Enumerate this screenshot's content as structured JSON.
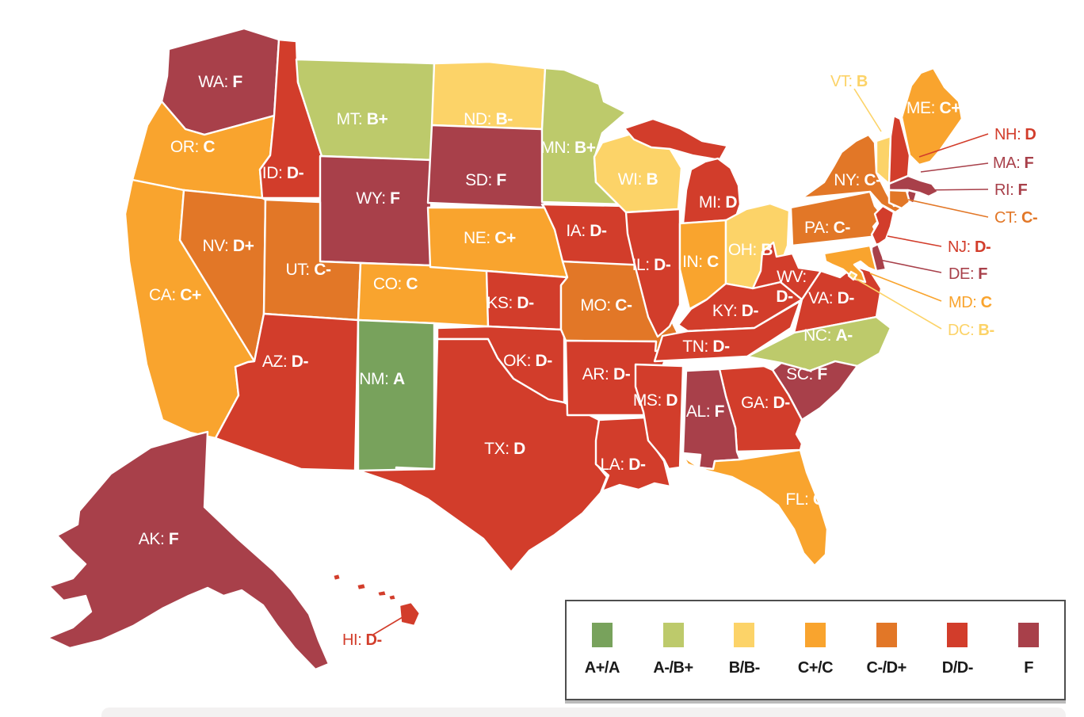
{
  "page": {
    "background": "#ffffff"
  },
  "map": {
    "stroke_color": "#ffffff",
    "state_label_color": "#ffffff",
    "label_separator": ": ",
    "states": [
      {
        "abbr": "WA",
        "grade": "F",
        "category": "F"
      },
      {
        "abbr": "OR",
        "grade": "C",
        "category": "C+/C"
      },
      {
        "abbr": "CA",
        "grade": "C+",
        "category": "C+/C"
      },
      {
        "abbr": "NV",
        "grade": "D+",
        "category": "C-/D+"
      },
      {
        "abbr": "ID",
        "grade": "D-",
        "category": "D/D-"
      },
      {
        "abbr": "MT",
        "grade": "B+",
        "category": "A-/B+"
      },
      {
        "abbr": "WY",
        "grade": "F",
        "category": "F"
      },
      {
        "abbr": "UT",
        "grade": "C-",
        "category": "C-/D+"
      },
      {
        "abbr": "CO",
        "grade": "C",
        "category": "C+/C"
      },
      {
        "abbr": "AZ",
        "grade": "D-",
        "category": "D/D-"
      },
      {
        "abbr": "NM",
        "grade": "A",
        "category": "A+/A"
      },
      {
        "abbr": "ND",
        "grade": "B-",
        "category": "B/B-"
      },
      {
        "abbr": "SD",
        "grade": "F",
        "category": "F"
      },
      {
        "abbr": "NE",
        "grade": "C+",
        "category": "C+/C"
      },
      {
        "abbr": "KS",
        "grade": "D-",
        "category": "D/D-"
      },
      {
        "abbr": "OK",
        "grade": "D-",
        "category": "D/D-"
      },
      {
        "abbr": "TX",
        "grade": "D",
        "category": "D/D-"
      },
      {
        "abbr": "MN",
        "grade": "B+",
        "category": "A-/B+"
      },
      {
        "abbr": "IA",
        "grade": "D-",
        "category": "D/D-"
      },
      {
        "abbr": "MO",
        "grade": "C-",
        "category": "C-/D+"
      },
      {
        "abbr": "AR",
        "grade": "D-",
        "category": "D/D-"
      },
      {
        "abbr": "LA",
        "grade": "D-",
        "category": "D/D-"
      },
      {
        "abbr": "WI",
        "grade": "B",
        "category": "B/B-"
      },
      {
        "abbr": "IL",
        "grade": "D-",
        "category": "D/D-"
      },
      {
        "abbr": "MS",
        "grade": "D",
        "category": "D/D-"
      },
      {
        "abbr": "MI",
        "grade": "D",
        "category": "D/D-"
      },
      {
        "abbr": "IN",
        "grade": "C",
        "category": "C+/C"
      },
      {
        "abbr": "OH",
        "grade": "B",
        "category": "B/B-"
      },
      {
        "abbr": "KY",
        "grade": "D-",
        "category": "D/D-"
      },
      {
        "abbr": "TN",
        "grade": "D-",
        "category": "D/D-"
      },
      {
        "abbr": "WV",
        "grade": "D-",
        "category": "D/D-"
      },
      {
        "abbr": "VA",
        "grade": "D-",
        "category": "D/D-"
      },
      {
        "abbr": "NC",
        "grade": "A-",
        "category": "A-/B+"
      },
      {
        "abbr": "SC",
        "grade": "F",
        "category": "F"
      },
      {
        "abbr": "GA",
        "grade": "D-",
        "category": "D/D-"
      },
      {
        "abbr": "AL",
        "grade": "F",
        "category": "F"
      },
      {
        "abbr": "FL",
        "grade": "C",
        "category": "C+/C"
      },
      {
        "abbr": "PA",
        "grade": "C-",
        "category": "C-/D+"
      },
      {
        "abbr": "NY",
        "grade": "C-",
        "category": "C-/D+"
      },
      {
        "abbr": "ME",
        "grade": "C+",
        "category": "C+/C"
      },
      {
        "abbr": "VT",
        "grade": "B",
        "category": "B/B-"
      },
      {
        "abbr": "NH",
        "grade": "D",
        "category": "D/D-"
      },
      {
        "abbr": "MA",
        "grade": "F",
        "category": "F"
      },
      {
        "abbr": "RI",
        "grade": "F",
        "category": "F"
      },
      {
        "abbr": "CT",
        "grade": "C-",
        "category": "C-/D+"
      },
      {
        "abbr": "NJ",
        "grade": "D-",
        "category": "D/D-"
      },
      {
        "abbr": "DE",
        "grade": "F",
        "category": "F"
      },
      {
        "abbr": "MD",
        "grade": "C",
        "category": "C+/C"
      },
      {
        "abbr": "DC",
        "grade": "B-",
        "category": "B/B-"
      },
      {
        "abbr": "AK",
        "grade": "F",
        "category": "F"
      },
      {
        "abbr": "HI",
        "grade": "D-",
        "category": "D/D-"
      }
    ]
  },
  "legend": {
    "border_color": "#4e4e4e",
    "text_color": "#1a1a1a",
    "items": [
      {
        "label": "A+/A",
        "color": "#78a25c"
      },
      {
        "label": "A-/B+",
        "color": "#bdca6b"
      },
      {
        "label": "B/B-",
        "color": "#fcd368"
      },
      {
        "label": "C+/C",
        "color": "#f9a42e"
      },
      {
        "label": "C-/D+",
        "color": "#e27727"
      },
      {
        "label": "D/D-",
        "color": "#d23d2b"
      },
      {
        "label": "F",
        "color": "#a8404a"
      }
    ]
  }
}
